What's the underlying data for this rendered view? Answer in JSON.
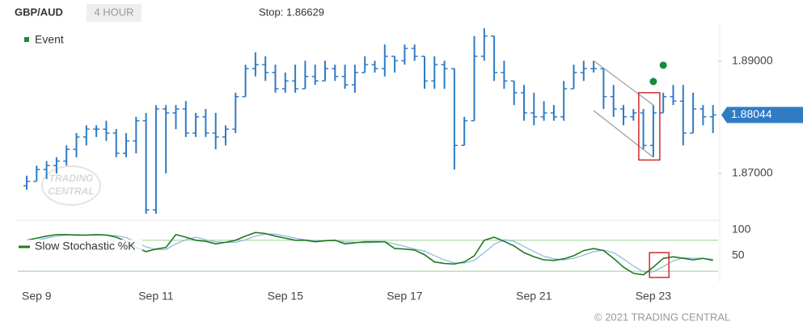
{
  "header": {
    "symbol": "GBP/AUD",
    "interval": "4 HOUR",
    "stop": "Stop: 1.86629"
  },
  "footer": "© 2021 TRADING CENTRAL",
  "watermark": [
    "TRADING",
    "CENTRAL"
  ],
  "chart_data": [
    {
      "type": "ohlc",
      "categories": [
        null,
        "Sep 9",
        null,
        null,
        null,
        null,
        null,
        null,
        null,
        null,
        null,
        null,
        null,
        "Sep 11",
        null,
        null,
        null,
        null,
        null,
        null,
        null,
        null,
        null,
        null,
        null,
        null,
        "Sep 15",
        null,
        null,
        null,
        null,
        null,
        null,
        null,
        null,
        null,
        null,
        null,
        "Sep 17",
        null,
        null,
        null,
        null,
        null,
        null,
        null,
        null,
        null,
        null,
        null,
        null,
        "Sep 21",
        null,
        null,
        null,
        null,
        null,
        null,
        null,
        null,
        null,
        null,
        null,
        "Sep 23",
        null,
        null,
        null,
        null,
        null,
        null
      ],
      "open": [
        1.8678,
        1.8686,
        1.8707,
        1.8714,
        1.8722,
        1.8743,
        1.8765,
        1.8779,
        1.8779,
        1.8772,
        1.8736,
        1.8758,
        1.8794,
        1.8635,
        1.8815,
        1.8808,
        1.8815,
        1.8772,
        1.8801,
        1.8772,
        1.8765,
        1.8779,
        1.8837,
        1.8887,
        1.8894,
        1.888,
        1.8851,
        1.8865,
        1.8851,
        1.8873,
        1.8865,
        1.8887,
        1.8873,
        1.8858,
        1.888,
        1.8894,
        1.8887,
        1.8909,
        1.8901,
        1.8923,
        1.8909,
        1.8865,
        1.8894,
        1.8887,
        1.875,
        1.8794,
        1.8909,
        1.8945,
        1.888,
        1.8865,
        1.8844,
        1.8808,
        1.8801,
        1.8808,
        1.8801,
        1.8851,
        1.888,
        1.8887,
        1.8887,
        1.8837,
        1.8815,
        1.8801,
        1.8808,
        1.875,
        1.8808,
        1.8837,
        1.8829,
        1.8772,
        1.8815,
        1.8801
      ],
      "high": [
        1.8696,
        1.8714,
        1.8722,
        1.8729,
        1.875,
        1.8772,
        1.8786,
        1.8786,
        1.8794,
        1.8779,
        1.8772,
        1.8801,
        1.8808,
        1.8822,
        1.8822,
        1.8822,
        1.8829,
        1.8808,
        1.8815,
        1.8808,
        1.8786,
        1.8844,
        1.8894,
        1.8916,
        1.8909,
        1.8894,
        1.888,
        1.8894,
        1.8901,
        1.8894,
        1.8901,
        1.8894,
        1.8894,
        1.8894,
        1.8909,
        1.8901,
        1.893,
        1.8909,
        1.893,
        1.893,
        1.8909,
        1.8909,
        1.8901,
        1.8887,
        1.8801,
        1.8945,
        1.8959,
        1.8945,
        1.8901,
        1.8865,
        1.8858,
        1.8844,
        1.8829,
        1.8822,
        1.8865,
        1.8894,
        1.8901,
        1.8901,
        1.8887,
        1.8858,
        1.8822,
        1.8815,
        1.8815,
        1.8822,
        1.8844,
        1.8858,
        1.8858,
        1.8844,
        1.8822,
        1.8822
      ],
      "low": [
        1.8671,
        1.8686,
        1.869,
        1.87,
        1.8714,
        1.8729,
        1.875,
        1.8765,
        1.8758,
        1.8729,
        1.8729,
        1.8736,
        1.8628,
        1.8628,
        1.87,
        1.8779,
        1.8765,
        1.8765,
        1.8765,
        1.8743,
        1.875,
        1.8772,
        1.8837,
        1.8873,
        1.8865,
        1.8844,
        1.8844,
        1.8844,
        1.8851,
        1.8858,
        1.8865,
        1.8865,
        1.8851,
        1.8844,
        1.888,
        1.888,
        1.8873,
        1.888,
        1.8894,
        1.8901,
        1.8851,
        1.8851,
        1.8851,
        1.8707,
        1.875,
        1.8794,
        1.8901,
        1.8865,
        1.8851,
        1.8822,
        1.8794,
        1.8786,
        1.8794,
        1.8794,
        1.8794,
        1.8851,
        1.8865,
        1.888,
        1.8815,
        1.8801,
        1.8786,
        1.8794,
        1.8743,
        1.8729,
        1.8808,
        1.8822,
        1.875,
        1.8772,
        1.8786,
        1.8772
      ],
      "close": [
        1.8686,
        1.8707,
        1.8714,
        1.8722,
        1.8743,
        1.8765,
        1.8779,
        1.8779,
        1.8772,
        1.8736,
        1.8758,
        1.8794,
        1.8635,
        1.8815,
        1.8808,
        1.8815,
        1.8772,
        1.8801,
        1.8772,
        1.8765,
        1.8779,
        1.8837,
        1.8887,
        1.8894,
        1.888,
        1.8851,
        1.8865,
        1.8851,
        1.8873,
        1.8865,
        1.8887,
        1.8873,
        1.8858,
        1.888,
        1.8894,
        1.8887,
        1.8909,
        1.8901,
        1.8923,
        1.8909,
        1.8865,
        1.8894,
        1.8887,
        1.875,
        1.8794,
        1.8909,
        1.8945,
        1.888,
        1.8865,
        1.8844,
        1.8808,
        1.8801,
        1.8808,
        1.8801,
        1.8851,
        1.888,
        1.8887,
        1.8887,
        1.8837,
        1.8815,
        1.8801,
        1.8808,
        1.875,
        1.8808,
        1.8837,
        1.8829,
        1.8772,
        1.8815,
        1.8801,
        1.88044
      ],
      "color": "#2f7bc4",
      "ylim": [
        1.862,
        1.897
      ],
      "yticks": [
        {
          "value": 1.89,
          "label": "1.89000"
        },
        {
          "value": 1.87,
          "label": "1.87000"
        }
      ],
      "events": {
        "name": "Event",
        "color": "#1a8a3a",
        "x": [
          63,
          64
        ],
        "values": [
          1.8864,
          1.8893
        ]
      },
      "channel": [
        {
          "x": [
            57,
            63
          ],
          "values": [
            1.8901,
            1.8822
          ]
        },
        {
          "x": [
            57,
            63
          ],
          "values": [
            1.8812,
            1.8729
          ]
        }
      ],
      "highlight": {
        "x": 63,
        "values": [
          1.8724,
          1.8844
        ],
        "color": "#d42a2a"
      }
    },
    {
      "type": "line",
      "ylim": [
        0,
        100
      ],
      "yticks": [
        100,
        50
      ],
      "bands": [
        80,
        20
      ],
      "highlight": {
        "x": 64,
        "values": [
          8,
          56
        ],
        "color": "#d42a2a"
      },
      "series": [
        {
          "name": "Slow Stochastic %K",
          "color": "#1e7a1e",
          "values": [
            80,
            84,
            88,
            91,
            91,
            90,
            90,
            91,
            90,
            86,
            78,
            66,
            58,
            63,
            66,
            91,
            86,
            80,
            78,
            73,
            76,
            80,
            88,
            95,
            93,
            88,
            84,
            80,
            80,
            77,
            79,
            80,
            73,
            75,
            77,
            77,
            77,
            64,
            63,
            61,
            52,
            38,
            35,
            34,
            38,
            50,
            80,
            86,
            78,
            69,
            56,
            48,
            42,
            41,
            44,
            50,
            60,
            64,
            60,
            45,
            28,
            16,
            13,
            28,
            45,
            48,
            45,
            42,
            45,
            41
          ]
        },
        {
          "color": "#8ab4e0",
          "values": [
            78,
            80,
            84,
            88,
            90,
            91,
            90,
            90,
            90,
            89,
            85,
            77,
            67,
            62,
            62,
            73,
            81,
            86,
            81,
            77,
            76,
            76,
            81,
            88,
            92,
            92,
            88,
            84,
            81,
            79,
            79,
            79,
            77,
            76,
            75,
            76,
            77,
            73,
            68,
            63,
            59,
            50,
            42,
            36,
            36,
            41,
            56,
            72,
            81,
            78,
            68,
            58,
            49,
            44,
            42,
            45,
            51,
            58,
            61,
            56,
            44,
            30,
            19,
            19,
            29,
            40,
            46,
            45,
            45,
            43
          ]
        }
      ]
    }
  ]
}
